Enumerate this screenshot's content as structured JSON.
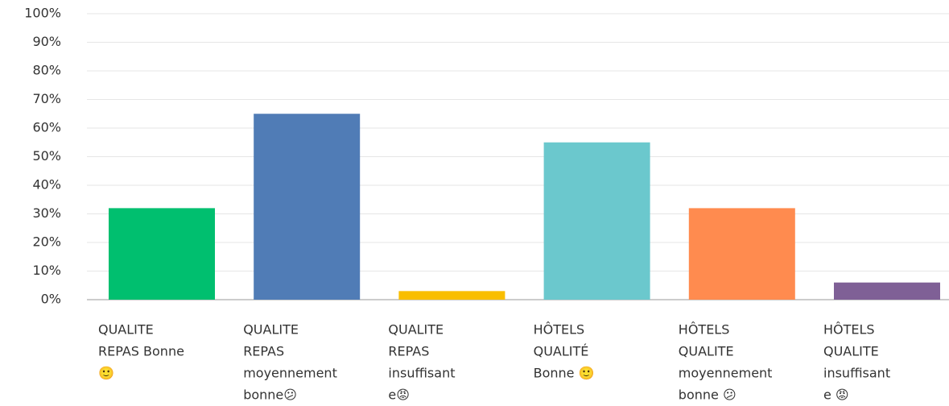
{
  "chart_data": {
    "type": "bar",
    "categories": [
      [
        "QUALITE",
        "REPAS Bonne",
        "🙂"
      ],
      [
        "QUALITE",
        "REPAS",
        "moyennement",
        "bonne😕"
      ],
      [
        "QUALITE",
        "REPAS",
        "insuffisant",
        "e😡"
      ],
      [
        "HÔTELS",
        "QUALITÉ",
        "Bonne 🙂"
      ],
      [
        "HÔTELS",
        "QUALITE",
        "moyennement",
        "bonne 😕"
      ],
      [
        "HÔTELS",
        "QUALITE",
        "insuffisant",
        "e 😡"
      ]
    ],
    "values": [
      32,
      65,
      3,
      55,
      32,
      6
    ],
    "colors": [
      "#00bf6f",
      "#507cb6",
      "#f9be00",
      "#6bc8cd",
      "#ff8b4f",
      "#7f6096"
    ],
    "ylim": [
      0,
      100
    ],
    "yticks": [
      {
        "value": 0,
        "label": "0%"
      },
      {
        "value": 10,
        "label": "10%"
      },
      {
        "value": 20,
        "label": "20%"
      },
      {
        "value": 30,
        "label": "30%"
      },
      {
        "value": 40,
        "label": "40%"
      },
      {
        "value": 50,
        "label": "50%"
      },
      {
        "value": 60,
        "label": "60%"
      },
      {
        "value": 70,
        "label": "70%"
      },
      {
        "value": 80,
        "label": "80%"
      },
      {
        "value": 90,
        "label": "90%"
      },
      {
        "value": 100,
        "label": "100%"
      }
    ],
    "grid": true
  }
}
